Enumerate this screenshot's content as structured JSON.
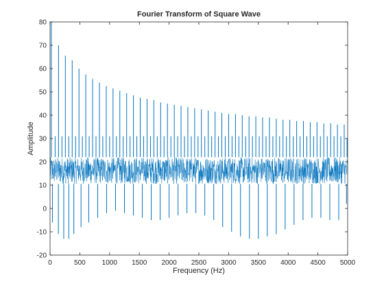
{
  "chart_data": {
    "type": "line",
    "title": "Fourier Transform of Square Wave",
    "xlabel": "Frequency (Hz)",
    "ylabel": "Amplitude",
    "xlim": [
      0,
      5000
    ],
    "ylim": [
      -20,
      80
    ],
    "xticks": [
      0,
      500,
      1000,
      1500,
      2000,
      2500,
      3000,
      3500,
      4000,
      4500,
      5000
    ],
    "yticks": [
      -20,
      -10,
      0,
      10,
      20,
      30,
      40,
      50,
      60,
      70,
      80
    ],
    "grid": false,
    "legend": "none",
    "color": "#0072BD",
    "series": [
      {
        "peaks": {
          "x": [
            22,
            142,
            257,
            372,
            486,
            600,
            715,
            830,
            944,
            1058,
            1172,
            1287,
            1401,
            1515,
            1630,
            1744,
            1858,
            1972,
            2087,
            2201,
            2315,
            2429,
            2543,
            2658,
            2772,
            2886,
            3000,
            3115,
            3229,
            3343,
            3457,
            3571,
            3686,
            3800,
            3914,
            4028,
            4143,
            4257,
            4371,
            4485,
            4599,
            4714,
            4828,
            4942
          ],
          "y": [
            80,
            70,
            65.5,
            63.5,
            60,
            57.5,
            55.5,
            54,
            52.5,
            51.5,
            50.5,
            49.5,
            48.5,
            47.5,
            47,
            46.5,
            45.5,
            45,
            44.5,
            44,
            43.5,
            43,
            42.5,
            42,
            41.5,
            41,
            40.5,
            40.5,
            40,
            39.5,
            39.5,
            39,
            39,
            38.5,
            38,
            38,
            37.5,
            37.5,
            37,
            37,
            36.5,
            36.5,
            36,
            36
          ]
        },
        "secondary_peaks": {
          "x": [
            85,
            200,
            314,
            429,
            543,
            657,
            772,
            886,
            1001,
            1115,
            1229,
            1344,
            1458,
            1572,
            1687,
            1801,
            1915,
            2030,
            2144,
            2258,
            2372,
            2486,
            2600,
            2715,
            2829,
            2943,
            3058,
            3172,
            3286,
            3400,
            3514,
            3629,
            3743,
            3857,
            3971,
            4086,
            4200,
            4314,
            4428,
            4542,
            4657,
            4771,
            4885,
            4990
          ],
          "y": [
            31,
            31,
            31,
            31,
            31,
            31,
            31,
            31,
            31,
            31,
            31,
            31,
            31,
            31,
            31,
            31,
            31,
            31,
            31,
            31,
            31,
            31,
            31,
            31,
            31,
            31,
            31,
            31,
            31,
            31,
            31,
            31,
            31,
            31,
            31,
            31,
            31,
            31,
            31,
            31,
            31,
            31,
            31,
            30
          ]
        },
        "noise_band": {
          "low": 10.5,
          "high": 22
        },
        "dips": {
          "x": [
            40,
            140,
            230,
            315,
            400,
            520,
            650,
            800,
            950,
            1100,
            1250,
            1400,
            1550,
            1700,
            1850,
            2000,
            2150,
            2300,
            2450,
            2600,
            2750,
            2900,
            3050,
            3200,
            3350,
            3500,
            3650,
            3800,
            3950,
            4100,
            4250,
            4400,
            4550,
            4700,
            4850,
            4980
          ],
          "y": [
            -6,
            -11,
            -13,
            -13,
            -11,
            -8,
            -6,
            -4,
            -2,
            -1,
            -2,
            -3,
            -4,
            -5,
            -5,
            -4,
            -3,
            -2,
            -2,
            -3,
            -5,
            -8,
            -10,
            -12,
            -13,
            -13,
            -12,
            -11,
            -9,
            -7,
            -5,
            -4,
            -4,
            -5,
            -5,
            2
          ]
        }
      }
    ]
  }
}
